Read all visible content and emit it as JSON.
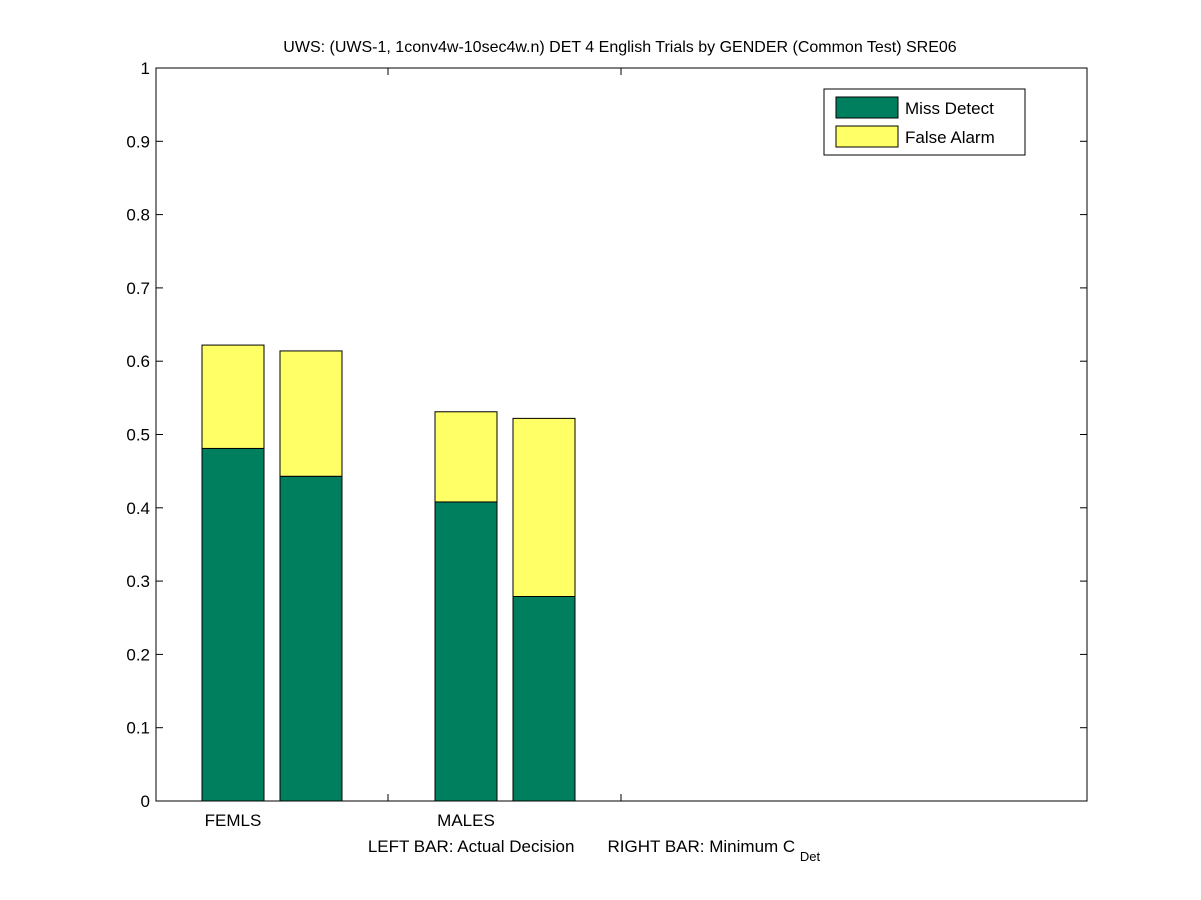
{
  "chart_data": {
    "type": "bar",
    "stacked": true,
    "title": "UWS: (UWS-1, 1conv4w-10sec4w.n) DET 4 English Trials by GENDER (Common Test) SRE06",
    "xlabel_left": "LEFT BAR: Actual Decision",
    "xlabel_right_main": "RIGHT BAR: Minimum C",
    "xlabel_right_sub": "Det",
    "groups": [
      "FEMLS",
      "MALES"
    ],
    "bars": [
      {
        "group": "FEMLS",
        "kind": "Actual Decision",
        "miss": 0.481,
        "false_alarm": 0.141
      },
      {
        "group": "FEMLS",
        "kind": "Minimum C_Det",
        "miss": 0.443,
        "false_alarm": 0.171
      },
      {
        "group": "MALES",
        "kind": "Actual Decision",
        "miss": 0.408,
        "false_alarm": 0.123
      },
      {
        "group": "MALES",
        "kind": "Minimum C_Det",
        "miss": 0.279,
        "false_alarm": 0.243
      }
    ],
    "series": [
      {
        "name": "Miss Detect",
        "color": "#007f5f"
      },
      {
        "name": "False Alarm",
        "color": "#ffff66"
      }
    ],
    "ylim": [
      0,
      1
    ],
    "yticks": [
      "0",
      "0.1",
      "0.2",
      "0.3",
      "0.4",
      "0.5",
      "0.6",
      "0.7",
      "0.8",
      "0.9",
      "1"
    ],
    "legend_position": "top-right",
    "grid": false
  }
}
